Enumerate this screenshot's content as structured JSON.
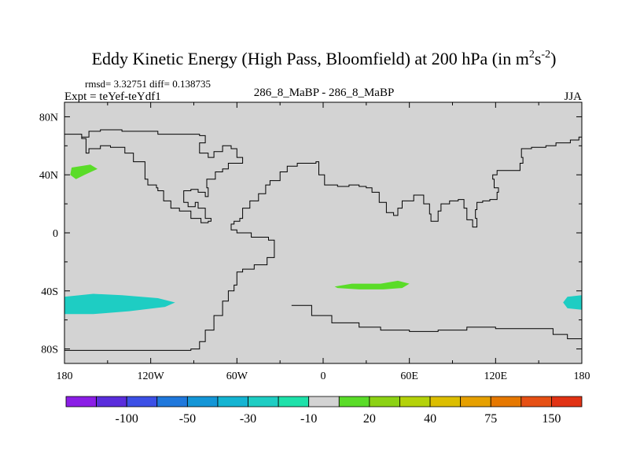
{
  "chart_data": {
    "type": "heatmap",
    "title": "Eddy Kinetic Energy (High Pass, Bloomfield) at 200 hPa (in m",
    "title_units_sup1": "2",
    "title_units_mid": "s",
    "title_units_sup2": "-2",
    "title_close": ")",
    "stats": "rmsd= 3.32751 diff= 0.138735",
    "expt": "Expt = teYef-teYdf1",
    "case": "286_8_MaBP - 286_8_MaBP",
    "season": "JJA",
    "xlim": [
      -180,
      180
    ],
    "ylim": [
      -90,
      90
    ],
    "x_ticks": [
      {
        "value": -180,
        "label": "180"
      },
      {
        "value": -120,
        "label": "120W"
      },
      {
        "value": -60,
        "label": "60W"
      },
      {
        "value": 0,
        "label": "0"
      },
      {
        "value": 60,
        "label": "60E"
      },
      {
        "value": 120,
        "label": "120E"
      },
      {
        "value": 180,
        "label": "180"
      }
    ],
    "y_ticks": [
      {
        "value": 80,
        "label": "80N"
      },
      {
        "value": 40,
        "label": "40N"
      },
      {
        "value": 0,
        "label": "0"
      },
      {
        "value": -40,
        "label": "40S"
      },
      {
        "value": -80,
        "label": "80S"
      }
    ],
    "background_color": "#d3d3d3",
    "colorbar": {
      "colors": [
        "#8b1ee6",
        "#5a2ddc",
        "#3c50e6",
        "#1f78dc",
        "#1496d7",
        "#14b4d2",
        "#1ecdc3",
        "#1ee1aa",
        "#d3d3d3",
        "#5adc28",
        "#8cd214",
        "#b4d20a",
        "#dcbe00",
        "#e6a000",
        "#e67800",
        "#e65014",
        "#e13214"
      ],
      "labels": [
        "-100",
        "-50",
        "-30",
        "-10",
        "20",
        "40",
        "75",
        "150"
      ],
      "label_after_box": [
        1,
        3,
        5,
        7,
        9,
        11,
        13,
        15
      ]
    },
    "anomaly_regions": [
      {
        "value": 25,
        "color": "#5adc28",
        "polygon": [
          [
            -175,
            45
          ],
          [
            -162,
            47
          ],
          [
            -157,
            44
          ],
          [
            -166,
            40
          ],
          [
            -172,
            37
          ],
          [
            -176,
            40
          ]
        ]
      },
      {
        "value": 25,
        "color": "#5adc28",
        "polygon": [
          [
            8,
            -37
          ],
          [
            20,
            -35
          ],
          [
            40,
            -35
          ],
          [
            52,
            -33
          ],
          [
            60,
            -35
          ],
          [
            55,
            -38
          ],
          [
            42,
            -39
          ],
          [
            25,
            -39
          ],
          [
            10,
            -38
          ]
        ]
      },
      {
        "value": -20,
        "color": "#1ecdc3",
        "polygon": [
          [
            -180,
            -44
          ],
          [
            -160,
            -42
          ],
          [
            -140,
            -43
          ],
          [
            -115,
            -45
          ],
          [
            -103,
            -48
          ],
          [
            -110,
            -51
          ],
          [
            -135,
            -54
          ],
          [
            -160,
            -56
          ],
          [
            -180,
            -56
          ]
        ]
      },
      {
        "value": -20,
        "color": "#1ecdc3",
        "polygon": [
          [
            180,
            -43
          ],
          [
            170,
            -44
          ],
          [
            167,
            -48
          ],
          [
            170,
            -52
          ],
          [
            180,
            -53
          ]
        ]
      }
    ],
    "coastlines": [
      [
        [
          -180,
          -81
        ],
        [
          -96,
          -81
        ],
        [
          -92,
          -80
        ],
        [
          -86,
          -75
        ],
        [
          -82,
          -67
        ],
        [
          -76,
          -57
        ],
        [
          -70,
          -47
        ],
        [
          -66,
          -40
        ],
        [
          -62,
          -36
        ],
        [
          -60,
          -27
        ],
        [
          -56,
          -25
        ],
        [
          -48,
          -22
        ],
        [
          -39,
          -17
        ],
        [
          -34,
          -5
        ],
        [
          -38,
          -3
        ],
        [
          -50,
          0
        ],
        [
          -60,
          2
        ],
        [
          -64,
          6
        ],
        [
          -62,
          8
        ],
        [
          -58,
          10
        ],
        [
          -56,
          17
        ],
        [
          -51,
          22
        ],
        [
          -45,
          27
        ],
        [
          -40,
          33
        ],
        [
          -37,
          36
        ],
        [
          -30,
          42
        ],
        [
          -25,
          46
        ],
        [
          -18,
          48
        ],
        [
          -5,
          49
        ],
        [
          -3,
          40
        ],
        [
          1,
          33
        ],
        [
          10,
          32
        ],
        [
          18,
          33
        ],
        [
          25,
          32
        ],
        [
          30,
          31
        ],
        [
          34,
          28
        ],
        [
          39,
          21
        ],
        [
          44,
          14
        ],
        [
          49,
          12
        ],
        [
          52,
          17
        ],
        [
          55,
          22
        ],
        [
          63,
          26
        ],
        [
          70,
          20
        ],
        [
          74,
          13
        ],
        [
          75,
          8
        ],
        [
          78,
          8
        ],
        [
          80,
          15
        ],
        [
          82,
          20
        ],
        [
          88,
          22
        ],
        [
          94,
          23
        ],
        [
          98,
          17
        ],
        [
          100,
          9
        ],
        [
          104,
          4
        ],
        [
          107,
          10
        ],
        [
          106,
          16
        ],
        [
          107,
          21
        ],
        [
          111,
          22
        ],
        [
          116,
          23
        ],
        [
          121,
          28
        ],
        [
          122,
          31
        ],
        [
          119,
          37
        ],
        [
          118,
          40
        ],
        [
          121,
          43
        ],
        [
          132,
          43
        ],
        [
          137,
          48
        ],
        [
          139,
          52
        ],
        [
          138,
          58
        ],
        [
          145,
          59
        ],
        [
          155,
          60
        ],
        [
          162,
          62
        ],
        [
          172,
          64
        ],
        [
          178,
          66
        ],
        [
          180,
          66
        ]
      ],
      [
        [
          -180,
          68
        ],
        [
          -168,
          66
        ],
        [
          -163,
          70
        ],
        [
          -155,
          71
        ],
        [
          -140,
          70
        ],
        [
          -125,
          70
        ],
        [
          -115,
          68
        ],
        [
          -95,
          68
        ],
        [
          -86,
          67
        ],
        [
          -82,
          62
        ],
        [
          -86,
          55
        ],
        [
          -80,
          52
        ],
        [
          -76,
          56
        ],
        [
          -70,
          60
        ],
        [
          -64,
          58
        ],
        [
          -60,
          52
        ],
        [
          -56,
          48
        ],
        [
          -66,
          44
        ],
        [
          -70,
          42
        ],
        [
          -75,
          37
        ],
        [
          -81,
          31
        ],
        [
          -80,
          25
        ],
        [
          -82,
          28
        ],
        [
          -87,
          30
        ],
        [
          -92,
          29
        ],
        [
          -97,
          26
        ],
        [
          -97,
          21
        ],
        [
          -94,
          18
        ],
        [
          -89,
          21
        ],
        [
          -87,
          17
        ],
        [
          -82,
          10
        ],
        [
          -78,
          8
        ],
        [
          -80,
          7
        ],
        [
          -85,
          10
        ],
        [
          -92,
          15
        ],
        [
          -100,
          17
        ],
        [
          -106,
          22
        ],
        [
          -111,
          29
        ],
        [
          -115,
          31
        ],
        [
          -116,
          33
        ],
        [
          -122,
          37
        ],
        [
          -124,
          42
        ],
        [
          -124,
          49
        ],
        [
          -132,
          55
        ],
        [
          -138,
          59
        ],
        [
          -148,
          60
        ],
        [
          -155,
          58
        ],
        [
          -163,
          55
        ],
        [
          -165,
          60
        ],
        [
          -165,
          65
        ],
        [
          -168,
          66
        ]
      ],
      [
        [
          -22,
          -50
        ],
        [
          -8,
          -57
        ],
        [
          6,
          -62
        ],
        [
          25,
          -65
        ],
        [
          40,
          -67
        ],
        [
          60,
          -68
        ],
        [
          80,
          -67
        ],
        [
          100,
          -65
        ],
        [
          120,
          -66
        ],
        [
          140,
          -66
        ],
        [
          160,
          -70
        ],
        [
          170,
          -73
        ],
        [
          180,
          -75
        ]
      ]
    ]
  }
}
